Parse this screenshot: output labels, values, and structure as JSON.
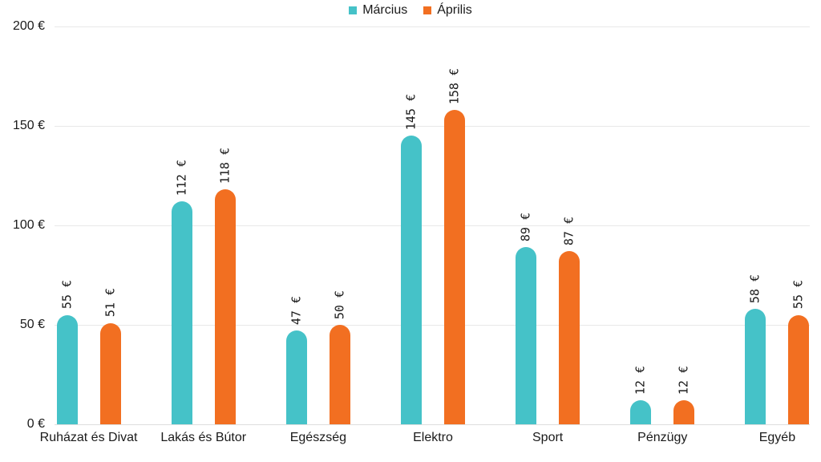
{
  "chart_data": {
    "type": "bar",
    "title": "",
    "xlabel": "",
    "ylabel": "",
    "categories": [
      "Ruházat és Divat",
      "Lakás és Bútor",
      "Egészség",
      "Elektro",
      "Sport",
      "Pénzügy",
      "Egyéb"
    ],
    "series": [
      {
        "name": "Március",
        "color": "#45c2c8",
        "values": [
          55,
          112,
          47,
          145,
          89,
          12,
          58
        ]
      },
      {
        "name": "Április",
        "color": "#f26f21",
        "values": [
          51,
          118,
          50,
          158,
          87,
          12,
          55
        ]
      }
    ],
    "value_suffix": " €",
    "y_ticks": [
      "200 €",
      "150 €",
      "100 €",
      "50 €",
      "0 €"
    ],
    "y_tick_values": [
      200,
      150,
      100,
      50,
      0
    ],
    "ylim": [
      0,
      200
    ],
    "grid": true,
    "legend_position": "top",
    "colors": {
      "gridline": "#e8e8e8",
      "baseline": "#dedede",
      "text": "#1a1a1a",
      "background": "#ffffff"
    }
  }
}
